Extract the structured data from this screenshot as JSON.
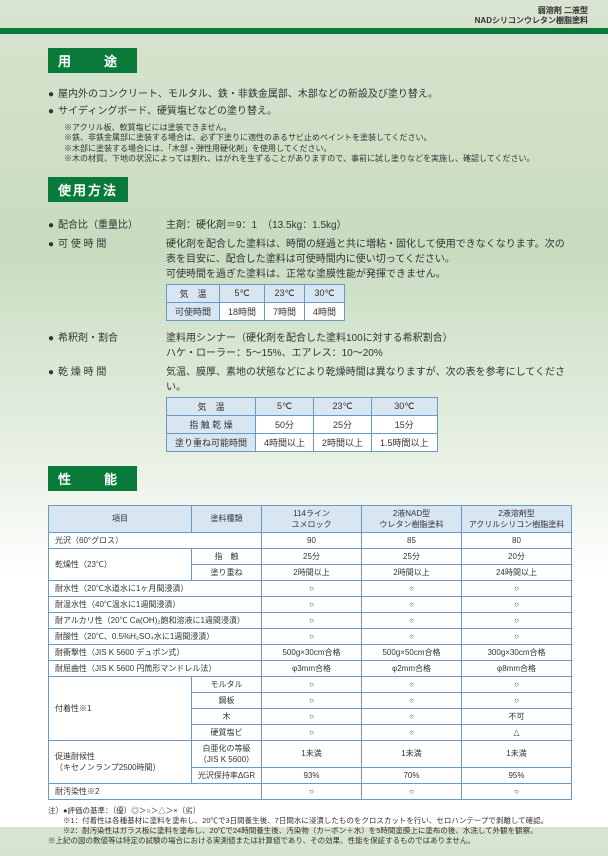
{
  "header": {
    "line1": "弱溶剤 二液型",
    "line2": "NADシリコンウレタン樹脂塗料"
  },
  "usage": {
    "title": "用　途",
    "bullets": [
      "屋内外のコンクリート、モルタル、鉄・非鉄金属部、木部などの新設及び塗り替え。",
      "サイディングボード、硬質塩ビなどの塗り替え。"
    ],
    "notes": [
      "アクリル板、軟質塩ビには塗装できません。",
      "鉄、非鉄金属部に塗装する場合は、必ず下塗りに適性のあるサビ止めペイントを塗装してください。",
      "木部に塗装する場合には、「木部・弾性用硬化剤」を使用してください。",
      "木の材質、下地の状況によっては割れ、はがれを生ずることがありますので、事前に試し塗りなどを実施し、確認してください。"
    ]
  },
  "method": {
    "title": "使用方法",
    "items": [
      {
        "label": "配合比（重量比）",
        "body": "主剤：硬化剤＝9：1　（13.5kg：1.5kg）"
      },
      {
        "label": "可 使 時 間",
        "body": "硬化剤を配合した塗料は、時間の経過と共に増粘・固化して使用できなくなります。次の表を目安に、配合した塗料は可使時間内に使い切ってください。",
        "body2": "可使時間を過ぎた塗料は、正常な塗膜性能が発揮できません。"
      },
      {
        "label": "希釈剤・割合",
        "body": "塗料用シンナー（硬化剤を配合した塗料100に対する希釈割合）",
        "body2": "ハケ・ローラー：5〜15%、エアレス：10〜20%"
      },
      {
        "label": "乾 燥 時 間",
        "body": "気温、膜厚、素地の状態などにより乾燥時間は異なりますが、次の表を参考にしてください。"
      }
    ],
    "pottable": {
      "header": [
        "気　温",
        "5℃",
        "23℃",
        "30℃"
      ],
      "row": [
        "可使時間",
        "18時間",
        "7時間",
        "4時間"
      ]
    },
    "drytable": {
      "header": [
        "気　温",
        "5℃",
        "23℃",
        "30℃"
      ],
      "rows": [
        [
          "指 触 乾 燥",
          "50分",
          "25分",
          "15分"
        ],
        [
          "塗り重ね可能時間",
          "4時間以上",
          "2時間以上",
          "1.5時間以上"
        ]
      ]
    }
  },
  "performance": {
    "title": "性　能",
    "header": [
      "項目",
      "塗料種類",
      "114ライン\nユメロック",
      "2液NAD型\nウレタン樹脂塗料",
      "2液溶剤型\nアクリルシリコン樹脂塗料"
    ],
    "rows": [
      {
        "lh": "光沢（60°グロス）",
        "sub": "",
        "cols": [
          "90",
          "85",
          "80"
        ]
      },
      {
        "lh": "乾燥性（23℃）",
        "sub": "指　触",
        "cols": [
          "25分",
          "25分",
          "20分"
        ]
      },
      {
        "lh": "",
        "sub": "塗り重ね",
        "cols": [
          "2時間以上",
          "2時間以上",
          "24時間以上"
        ]
      },
      {
        "lh": "耐水性（20℃水道水に1ヶ月間浸漬）",
        "sub": "",
        "cols": [
          "○",
          "○",
          "○"
        ]
      },
      {
        "lh": "耐温水性（40℃温水に1週間浸漬）",
        "sub": "",
        "cols": [
          "○",
          "○",
          "○"
        ]
      },
      {
        "lh": "耐アルカリ性（20℃ Ca(OH)₂飽和溶液に1週間浸漬）",
        "sub": "",
        "cols": [
          "○",
          "○",
          "○"
        ]
      },
      {
        "lh": "耐酸性（20℃、0.5%H₂SO₄水に1週間浸漬）",
        "sub": "",
        "cols": [
          "○",
          "○",
          "○"
        ]
      },
      {
        "lh": "耐衝撃性（JIS K 5600 デュポン式）",
        "sub": "",
        "cols": [
          "500g×30cm合格",
          "500g×50cm合格",
          "300g×30cm合格"
        ]
      },
      {
        "lh": "耐屈曲性（JIS K 5600 円筒形マンドレル法）",
        "sub": "",
        "cols": [
          "φ3mm合格",
          "φ2mm合格",
          "φ8mm合格"
        ]
      },
      {
        "lh": "付着性※1",
        "sub": "モルタル",
        "cols": [
          "○",
          "○",
          "○"
        ]
      },
      {
        "lh": "",
        "sub": "鋼板",
        "cols": [
          "○",
          "○",
          "○"
        ]
      },
      {
        "lh": "",
        "sub": "木",
        "cols": [
          "○",
          "○",
          "不可"
        ]
      },
      {
        "lh": "",
        "sub": "硬質塩ビ",
        "cols": [
          "○",
          "○",
          "△"
        ]
      },
      {
        "lh": "促進耐候性\n（キセノンランプ2500時間）",
        "sub": "白亜化の等級（JIS K 5600）",
        "cols": [
          "1未満",
          "1未満",
          "1未満"
        ]
      },
      {
        "lh": "",
        "sub": "光沢保持率ΔGR",
        "cols": [
          "93%",
          "70%",
          "95%"
        ]
      },
      {
        "lh": "耐汚染性※2",
        "sub": "",
        "cols": [
          "○",
          "○",
          "○"
        ]
      }
    ],
    "footer": [
      "注）●評価の基準：（優）◎＞○＞△＞×（劣）",
      "　　※1：付着性は各種基材に塗料を塗布し、20℃で3日間養生後、7日間水に浸漬したものをクロスカットを行い、セロハンテープで剥離して確認。",
      "　　※2：耐汚染性はガラス板に塗料を塗布し、20℃で24時間養生後、汚染物（カーボン＋水）を5時間塗膜上に塗布の後、水洗して外観を観察。",
      "※上記の図の数値等は特定の試験の場合における実測値または計算値であり、その効果、性能を保証するものではありません。"
    ]
  }
}
